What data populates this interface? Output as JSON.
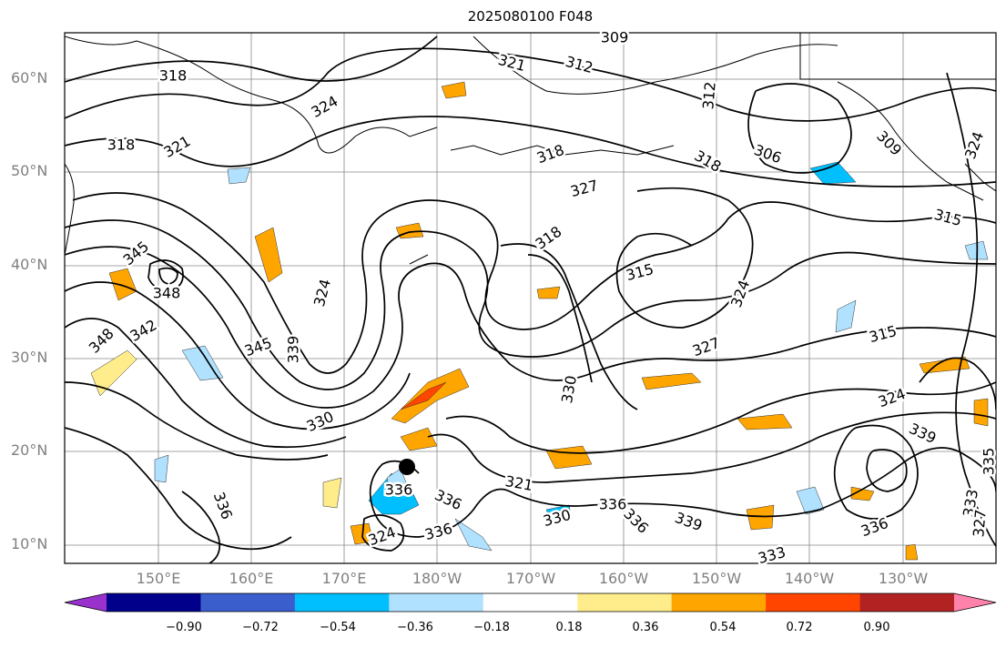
{
  "title": "2025080100 F048",
  "lat_labels": [
    "60°N",
    "50°N",
    "40°N",
    "30°N",
    "20°N",
    "10°N"
  ],
  "lon_labels": [
    "150°E",
    "160°E",
    "170°E",
    "180°W",
    "170°W",
    "160°W",
    "150°W",
    "140°W",
    "130°W"
  ],
  "colorbar": {
    "ticks": [
      "−0.90",
      "−0.72",
      "−0.54",
      "−0.36",
      "−0.18",
      "0.18",
      "0.36",
      "0.54",
      "0.72",
      "0.90"
    ],
    "colors": [
      "#9932cc",
      "#00008b",
      "#3a5fcd",
      "#00bfff",
      "#b0e2ff",
      "#ffffff",
      "#ffec8b",
      "#ffa500",
      "#ff4500",
      "#b22222",
      "#ff82ab"
    ]
  },
  "contour_labels": [
    {
      "text": "318"
    },
    {
      "text": "321"
    },
    {
      "text": "324"
    },
    {
      "text": "318"
    },
    {
      "text": "321"
    },
    {
      "text": "309"
    },
    {
      "text": "312"
    },
    {
      "text": "312"
    },
    {
      "text": "306"
    },
    {
      "text": "309"
    },
    {
      "text": "318"
    },
    {
      "text": "318"
    },
    {
      "text": "327"
    },
    {
      "text": "324"
    },
    {
      "text": "315"
    },
    {
      "text": "345"
    },
    {
      "text": "348"
    },
    {
      "text": "348"
    },
    {
      "text": "342"
    },
    {
      "text": "345"
    },
    {
      "text": "339"
    },
    {
      "text": "324"
    },
    {
      "text": "318"
    },
    {
      "text": "315"
    },
    {
      "text": "324"
    },
    {
      "text": "327"
    },
    {
      "text": "315"
    },
    {
      "text": "330"
    },
    {
      "text": "330"
    },
    {
      "text": "324"
    },
    {
      "text": "339"
    },
    {
      "text": "336"
    },
    {
      "text": "321"
    },
    {
      "text": "336"
    },
    {
      "text": "336"
    },
    {
      "text": "336"
    },
    {
      "text": "336"
    },
    {
      "text": "336"
    },
    {
      "text": "339"
    },
    {
      "text": "330"
    },
    {
      "text": "333"
    },
    {
      "text": "336"
    },
    {
      "text": "333"
    },
    {
      "text": "327"
    },
    {
      "text": "324"
    },
    {
      "text": "335"
    }
  ]
}
